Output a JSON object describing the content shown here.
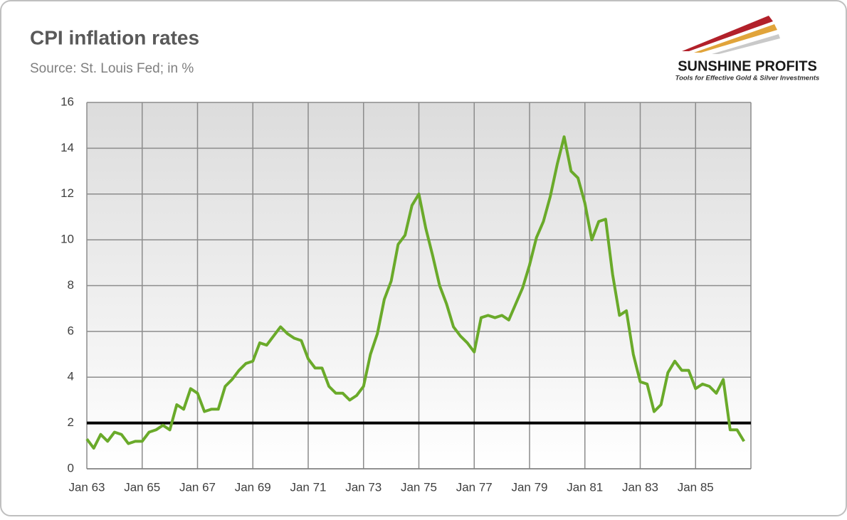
{
  "chart_data": {
    "type": "line",
    "title": "CPI inflation rates",
    "subtitle": "Source: St. Louis Fed; in %",
    "logo": {
      "name": "SUNSHINE PROFITS",
      "tagline": "Tools for Effective Gold & Silver Investments"
    },
    "categories": [
      "Jan 63",
      null,
      null,
      null,
      null,
      null,
      null,
      null,
      "Jan 65",
      null,
      null,
      null,
      null,
      null,
      null,
      null,
      "Jan 67",
      null,
      null,
      null,
      null,
      null,
      null,
      null,
      "Jan 69",
      null,
      null,
      null,
      null,
      null,
      null,
      null,
      "Jan 71",
      null,
      null,
      null,
      null,
      null,
      null,
      null,
      "Jan 73",
      null,
      null,
      null,
      null,
      null,
      null,
      null,
      "Jan 75",
      null,
      null,
      null,
      null,
      null,
      null,
      null,
      "Jan 77",
      null,
      null,
      null,
      null,
      null,
      null,
      null,
      "Jan 79",
      null,
      null,
      null,
      null,
      null,
      null,
      null,
      "Jan 81",
      null,
      null,
      null,
      null,
      null,
      null,
      null,
      "Jan 83",
      null,
      null,
      null,
      null,
      null,
      null,
      null,
      "Jan 85",
      null,
      null,
      null,
      null,
      null,
      null,
      null
    ],
    "series": [
      {
        "color": "#6aaa2a",
        "values": [
          1.3,
          0.9,
          1.5,
          1.2,
          1.6,
          1.5,
          1.1,
          1.2,
          1.2,
          1.6,
          1.7,
          1.9,
          1.7,
          2.8,
          2.6,
          3.5,
          3.3,
          2.5,
          2.6,
          2.6,
          3.6,
          3.9,
          4.3,
          4.6,
          4.7,
          5.5,
          5.4,
          5.8,
          6.2,
          5.9,
          5.7,
          5.6,
          4.8,
          4.4,
          4.4,
          3.6,
          3.3,
          3.3,
          3.0,
          3.2,
          3.6,
          5.0,
          5.9,
          7.4,
          8.2,
          9.8,
          10.2,
          11.5,
          12.0,
          10.5,
          9.3,
          8.0,
          7.2,
          6.2,
          5.8,
          5.5,
          5.1,
          6.6,
          6.7,
          6.6,
          6.7,
          6.5,
          7.2,
          7.9,
          8.9,
          10.1,
          10.8,
          11.9,
          13.3,
          14.5,
          13.0,
          12.7,
          11.6,
          10.0,
          10.8,
          10.9,
          8.5,
          6.7,
          6.9,
          5.0,
          3.8,
          3.7,
          2.5,
          2.8,
          4.2,
          4.7,
          4.3,
          4.3,
          3.5,
          3.7,
          3.6,
          3.3,
          3.9,
          1.7,
          1.7,
          1.2
        ]
      }
    ],
    "reference_line": {
      "value": 2,
      "color": "#000000"
    },
    "ylim": [
      0,
      16
    ],
    "yticks": [
      0,
      2,
      4,
      6,
      8,
      10,
      12,
      14,
      16
    ],
    "grid": true
  }
}
